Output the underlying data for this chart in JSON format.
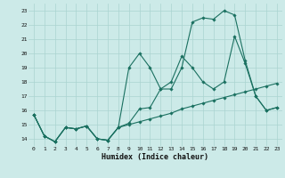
{
  "xlabel": "Humidex (Indice chaleur)",
  "bg_color": "#cceae8",
  "grid_color": "#aad4d0",
  "line_color": "#1a7060",
  "xlim": [
    -0.5,
    23.5
  ],
  "ylim": [
    13.5,
    23.5
  ],
  "xticks": [
    0,
    1,
    2,
    3,
    4,
    5,
    6,
    7,
    8,
    9,
    10,
    11,
    12,
    13,
    14,
    15,
    16,
    17,
    18,
    19,
    20,
    21,
    22,
    23
  ],
  "yticks": [
    14,
    15,
    16,
    17,
    18,
    19,
    20,
    21,
    22,
    23
  ],
  "curve1_x": [
    0,
    1,
    2,
    3,
    4,
    5,
    6,
    7,
    8,
    9,
    10,
    11,
    12,
    13,
    14,
    15,
    16,
    17,
    18,
    19,
    20,
    21,
    22,
    23
  ],
  "curve1_y": [
    15.7,
    14.2,
    13.8,
    14.8,
    14.7,
    14.9,
    14.0,
    13.9,
    14.8,
    19.0,
    20.0,
    19.0,
    17.5,
    17.5,
    19.0,
    22.2,
    22.5,
    22.4,
    23.0,
    22.7,
    19.5,
    17.0,
    16.0,
    16.2
  ],
  "curve2_x": [
    0,
    1,
    2,
    3,
    4,
    5,
    6,
    7,
    8,
    9,
    10,
    11,
    12,
    13,
    14,
    15,
    16,
    17,
    18,
    19,
    20,
    21,
    22,
    23
  ],
  "curve2_y": [
    15.7,
    14.2,
    13.8,
    14.8,
    14.7,
    14.9,
    14.0,
    13.9,
    14.8,
    15.1,
    16.1,
    16.2,
    17.5,
    18.0,
    19.8,
    19.0,
    18.0,
    17.5,
    18.0,
    21.2,
    19.3,
    17.0,
    16.0,
    16.2
  ],
  "curve3_x": [
    0,
    1,
    2,
    3,
    4,
    5,
    6,
    7,
    8,
    9,
    10,
    11,
    12,
    13,
    14,
    15,
    16,
    17,
    18,
    19,
    20,
    21,
    22,
    23
  ],
  "curve3_y": [
    15.7,
    14.2,
    13.8,
    14.8,
    14.7,
    14.9,
    14.0,
    13.9,
    14.8,
    15.0,
    15.2,
    15.4,
    15.6,
    15.8,
    16.1,
    16.3,
    16.5,
    16.7,
    16.9,
    17.1,
    17.3,
    17.5,
    17.7,
    17.9
  ]
}
